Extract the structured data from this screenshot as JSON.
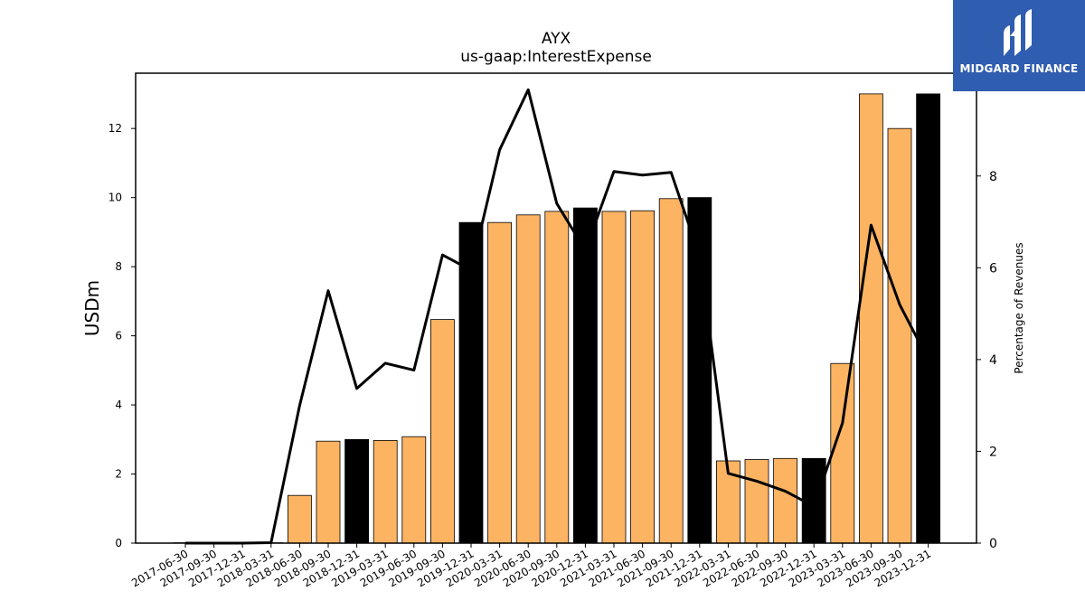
{
  "chart_data": {
    "type": "bar",
    "title": "AYX",
    "subtitle": "us-gaap:InterestExpense",
    "ylabel": "USDm",
    "y2label": "Percentage of Revenues",
    "ylim": [
      0,
      13.6
    ],
    "y2lim": [
      0,
      10.24
    ],
    "yticks": [
      0,
      2,
      4,
      6,
      8,
      10,
      12
    ],
    "y2ticks": [
      0,
      2,
      4,
      6,
      8
    ],
    "grid": false,
    "categories": [
      "2017-06-30",
      "2017-09-30",
      "2017-12-31",
      "2018-03-31",
      "2018-06-30",
      "2018-09-30",
      "2018-12-31",
      "2019-03-31",
      "2019-06-30",
      "2019-09-30",
      "2019-12-31",
      "2020-03-31",
      "2020-06-30",
      "2020-09-30",
      "2020-12-31",
      "2021-03-31",
      "2021-06-30",
      "2021-09-30",
      "2021-12-31",
      "2022-03-31",
      "2022-06-30",
      "2022-09-30",
      "2022-12-31",
      "2023-03-31",
      "2023-06-30",
      "2023-09-30",
      "2023-12-31"
    ],
    "series": [
      {
        "kind": "bar",
        "axis": "left",
        "values": [
          0.01,
          0.01,
          0.01,
          0.01,
          1.38,
          2.95,
          3.0,
          2.97,
          3.08,
          6.47,
          9.28,
          9.28,
          9.5,
          9.6,
          9.7,
          9.6,
          9.62,
          9.97,
          10.0,
          2.38,
          2.42,
          2.45,
          2.45,
          5.2,
          13.0,
          12.0,
          13.0
        ],
        "colors": [
          "#fdb462",
          "#fdb462",
          "#fdb462",
          "#000000",
          "#fdb462",
          "#fdb462",
          "#000000",
          "#fdb462",
          "#fdb462",
          "#fdb462",
          "#000000",
          "#fdb462",
          "#fdb462",
          "#fdb462",
          "#000000",
          "#fdb462",
          "#fdb462",
          "#fdb462",
          "#000000",
          "#fdb462",
          "#fdb462",
          "#fdb462",
          "#000000",
          "#fdb462",
          "#fdb462",
          "#fdb462",
          "#000000"
        ]
      },
      {
        "kind": "line",
        "axis": "right",
        "color": "#000000",
        "values": [
          0.0,
          0.0,
          0.0,
          0.01,
          3.0,
          5.5,
          3.37,
          3.92,
          3.77,
          6.28,
          5.95,
          8.57,
          9.88,
          7.4,
          6.38,
          8.1,
          8.02,
          8.08,
          6.25,
          1.52,
          1.35,
          1.13,
          0.8,
          2.62,
          6.93,
          5.2,
          4.0
        ]
      }
    ]
  },
  "logo": {
    "text": "MIDGARD FINANCE",
    "icon": "midgard-logo-icon",
    "background": "#2f5db0"
  }
}
